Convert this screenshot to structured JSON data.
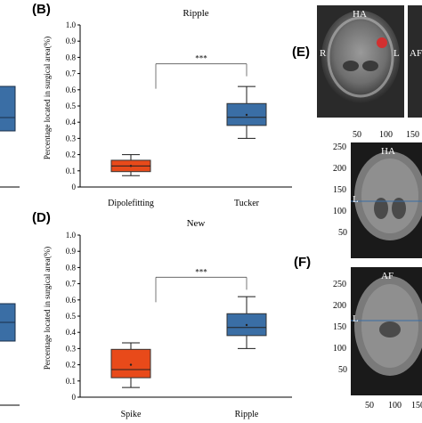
{
  "panels": {
    "A_label": "",
    "B_label": "(B)",
    "C_label": "",
    "D_label": "(D)",
    "E_label": "(E)",
    "F_label": "(F)"
  },
  "chart_data": [
    {
      "type": "box",
      "panel": "B",
      "title": "Ripple",
      "ylabel": "Percentage located in surgical area(%)",
      "xlabel": "",
      "ylim": [
        0,
        1.0
      ],
      "yticks": [
        "0",
        "0.1",
        "0.2",
        "0.3",
        "0.4",
        "0.5",
        "0.6",
        "0.7",
        "0.8",
        "0.9",
        "1.0"
      ],
      "categories": [
        "Dipolefitting",
        "Tucker"
      ],
      "boxes": [
        {
          "name": "Dipolefitting",
          "min": 0.07,
          "q1": 0.095,
          "median": 0.13,
          "q3": 0.165,
          "max": 0.2,
          "mean": 0.13,
          "color": "#e84a1a"
        },
        {
          "name": "Tucker",
          "min": 0.3,
          "q1": 0.38,
          "median": 0.43,
          "q3": 0.515,
          "max": 0.62,
          "mean": 0.445,
          "color": "#3a6ea5"
        }
      ],
      "significance": "***",
      "grid": false
    },
    {
      "type": "box",
      "panel": "D",
      "title": "New",
      "ylabel": "Percentage located in surgical area(%)",
      "xlabel": "",
      "ylim": [
        0,
        1.0
      ],
      "yticks": [
        "0",
        "0.1",
        "0.2",
        "0.3",
        "0.4",
        "0.5",
        "0.6",
        "0.7",
        "0.8",
        "0.9",
        "1.0"
      ],
      "categories": [
        "Spike",
        "Ripple"
      ],
      "boxes": [
        {
          "name": "Spike",
          "min": 0.06,
          "q1": 0.12,
          "median": 0.17,
          "q3": 0.295,
          "max": 0.335,
          "mean": 0.2,
          "color": "#e84a1a"
        },
        {
          "name": "Ripple",
          "min": 0.3,
          "q1": 0.38,
          "median": 0.43,
          "q3": 0.515,
          "max": 0.62,
          "mean": 0.445,
          "color": "#3a6ea5"
        }
      ],
      "significance": "***",
      "grid": false
    }
  ],
  "mri": {
    "e_top": {
      "ha_label": "HA",
      "r_label": "R",
      "l_label": "L",
      "af_label": "AF"
    },
    "f_top": {
      "title": "HA",
      "l_label": "L",
      "x_ticks": [
        "50",
        "100",
        "150"
      ],
      "y_ticks": [
        "250",
        "200",
        "150",
        "100",
        "50"
      ]
    },
    "f_bottom": {
      "title": "AF",
      "l_label": "L",
      "x_ticks": [
        "50",
        "100",
        "150"
      ],
      "y_ticks": [
        "250",
        "200",
        "150",
        "100",
        "50"
      ]
    }
  },
  "colors": {
    "red_box": "#e84a1a",
    "blue_box": "#3a6ea5",
    "mri_bg": "#1a1a1a"
  }
}
